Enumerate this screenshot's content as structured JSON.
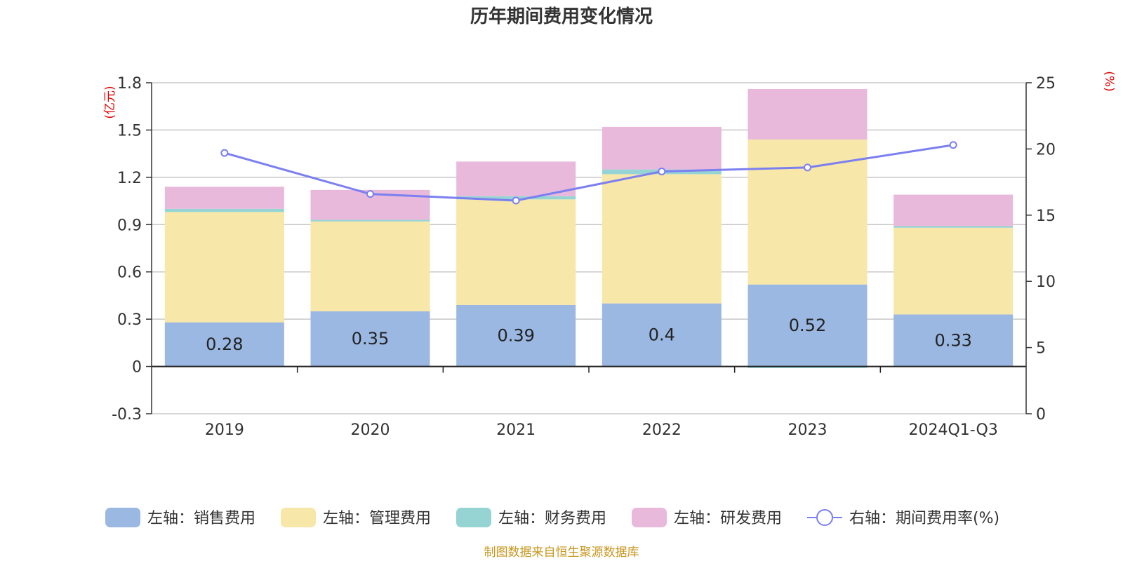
{
  "chart_data": {
    "type": "bar",
    "title": "历年期间费用变化情况",
    "categories": [
      "2019",
      "2020",
      "2021",
      "2022",
      "2023",
      "2024Q1-Q3"
    ],
    "series": [
      {
        "name": "左轴：销售费用",
        "axis": "left",
        "color": "#9bb8e2",
        "values": [
          0.28,
          0.35,
          0.39,
          0.4,
          0.52,
          0.33
        ]
      },
      {
        "name": "左轴：管理费用",
        "axis": "left",
        "color": "#f7e7a8",
        "values": [
          0.7,
          0.57,
          0.67,
          0.82,
          0.92,
          0.55
        ]
      },
      {
        "name": "左轴：财务费用",
        "axis": "left",
        "color": "#96d4d4",
        "values": [
          0.02,
          0.01,
          0.02,
          0.03,
          -0.01,
          0.01
        ]
      },
      {
        "name": "左轴：研发费用",
        "axis": "left",
        "color": "#e8b9da",
        "values": [
          0.14,
          0.19,
          0.22,
          0.27,
          0.32,
          0.2
        ]
      },
      {
        "name": "右轴：期间费用率(%)",
        "axis": "right",
        "type": "line",
        "color": "#7b7ff0",
        "values": [
          19.7,
          16.6,
          16.1,
          18.3,
          18.6,
          20.3
        ]
      }
    ],
    "data_labels": [
      "0.28",
      "0.35",
      "0.39",
      "0.4",
      "0.52",
      "0.33"
    ],
    "y_left": {
      "unit": "(亿元)",
      "min": -0.3,
      "max": 1.8,
      "ticks": [
        "1.8",
        "1.5",
        "1.2",
        "0.9",
        "0.6",
        "0.3",
        "0",
        "-0.3"
      ]
    },
    "y_right": {
      "unit": "(%)",
      "min": 0,
      "max": 25,
      "ticks": [
        "25",
        "20",
        "15",
        "10",
        "5",
        "0"
      ]
    },
    "grid": true,
    "legend_position": "bottom"
  },
  "source_note": "制图数据来自恒生聚源数据库"
}
